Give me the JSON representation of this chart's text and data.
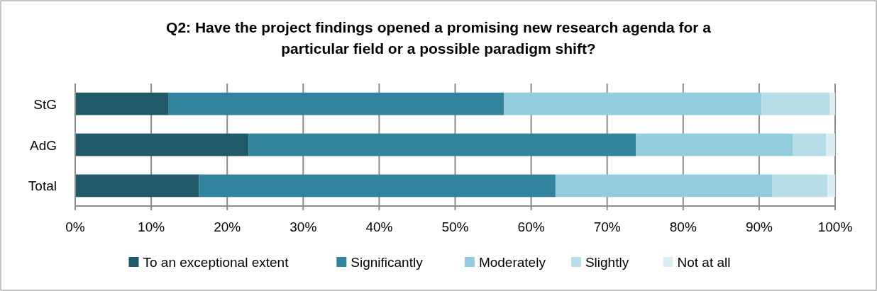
{
  "chart_data": {
    "type": "bar",
    "orientation": "horizontal",
    "stacked": true,
    "title": "Q2: Have the project findings opened a promising new research agenda for a particular field or a possible paradigm shift?",
    "categories": [
      "StG",
      "AdG",
      "Total"
    ],
    "series": [
      {
        "name": "To an exceptional extent",
        "color": "#215968",
        "values": [
          12.3,
          22.8,
          16.3
        ]
      },
      {
        "name": "Significantly",
        "color": "#31849b",
        "values": [
          44.1,
          51.0,
          46.9
        ]
      },
      {
        "name": "Moderately",
        "color": "#93cddd",
        "values": [
          33.9,
          20.6,
          28.5
        ]
      },
      {
        "name": "Slightly",
        "color": "#b7dee8",
        "values": [
          9.0,
          4.4,
          7.3
        ]
      },
      {
        "name": "Not at all",
        "color": "#dbeef4",
        "values": [
          0.7,
          1.2,
          1.0
        ]
      }
    ],
    "xlim": [
      0,
      100
    ],
    "xticks": [
      {
        "value": 0,
        "label": "0%"
      },
      {
        "value": 10,
        "label": "10%"
      },
      {
        "value": 20,
        "label": "20%"
      },
      {
        "value": 30,
        "label": "30%"
      },
      {
        "value": 40,
        "label": "40%"
      },
      {
        "value": 50,
        "label": "50%"
      },
      {
        "value": 60,
        "label": "60%"
      },
      {
        "value": 70,
        "label": "70%"
      },
      {
        "value": 80,
        "label": "80%"
      },
      {
        "value": 90,
        "label": "90%"
      },
      {
        "value": 100,
        "label": "100%"
      }
    ],
    "grid": "x",
    "legend": "bottom"
  }
}
